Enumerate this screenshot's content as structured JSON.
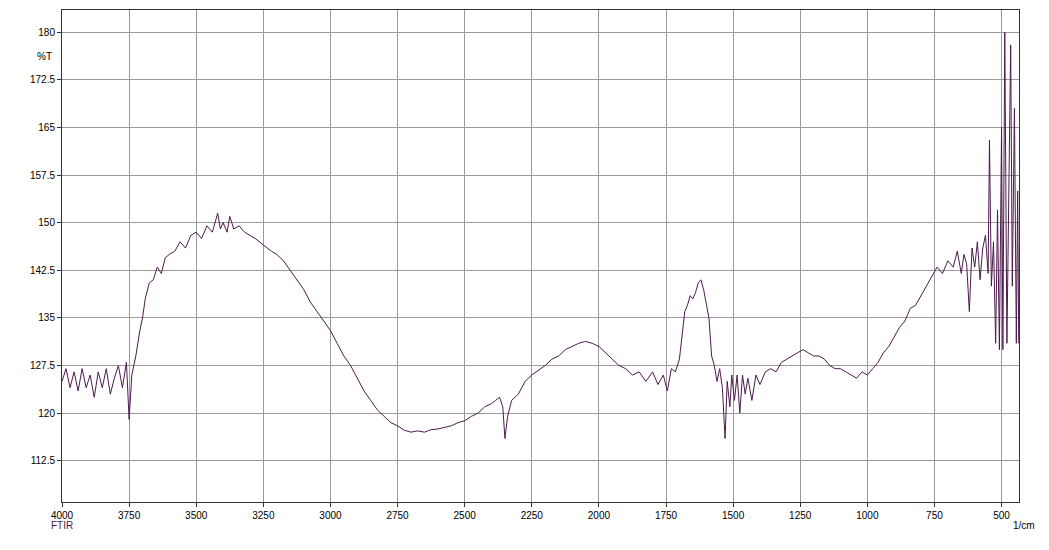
{
  "chart_data": {
    "type": "line",
    "xlabel": "1/cm",
    "ylabel": "%T",
    "annotations": [
      {
        "text": "FTIR",
        "x": 4000
      }
    ],
    "color": "#4d1b4d",
    "grid": true,
    "xlim": [
      4000,
      435
    ],
    "ylim": [
      106,
      183.5
    ],
    "xticks": [
      4000,
      3750,
      3500,
      3250,
      3000,
      2750,
      2500,
      2250,
      2000,
      1750,
      1500,
      1250,
      1000,
      750,
      500
    ],
    "yticks": [
      112.5,
      120,
      127.5,
      135,
      142.5,
      150,
      157.5,
      165,
      172.5,
      180
    ],
    "x": [
      4000,
      3985,
      3970,
      3955,
      3940,
      3925,
      3910,
      3895,
      3880,
      3865,
      3850,
      3835,
      3820,
      3805,
      3790,
      3775,
      3760,
      3750,
      3740,
      3725,
      3710,
      3700,
      3690,
      3675,
      3660,
      3645,
      3630,
      3615,
      3600,
      3580,
      3560,
      3540,
      3520,
      3500,
      3480,
      3460,
      3440,
      3420,
      3410,
      3400,
      3385,
      3375,
      3360,
      3340,
      3320,
      3300,
      3280,
      3250,
      3220,
      3200,
      3175,
      3150,
      3125,
      3100,
      3075,
      3050,
      3025,
      3000,
      2975,
      2950,
      2925,
      2900,
      2875,
      2850,
      2825,
      2800,
      2775,
      2750,
      2725,
      2700,
      2675,
      2650,
      2625,
      2600,
      2575,
      2550,
      2525,
      2500,
      2475,
      2450,
      2425,
      2400,
      2385,
      2370,
      2358,
      2350,
      2340,
      2325,
      2300,
      2275,
      2250,
      2225,
      2200,
      2175,
      2150,
      2125,
      2100,
      2075,
      2050,
      2025,
      2000,
      1975,
      1950,
      1925,
      1900,
      1875,
      1850,
      1825,
      1800,
      1780,
      1760,
      1745,
      1730,
      1715,
      1700,
      1690,
      1680,
      1670,
      1660,
      1650,
      1640,
      1630,
      1620,
      1610,
      1600,
      1590,
      1580,
      1570,
      1560,
      1550,
      1540,
      1530,
      1522,
      1512,
      1505,
      1495,
      1485,
      1475,
      1465,
      1455,
      1445,
      1430,
      1415,
      1400,
      1380,
      1360,
      1340,
      1320,
      1300,
      1280,
      1260,
      1240,
      1220,
      1200,
      1180,
      1160,
      1140,
      1120,
      1100,
      1080,
      1060,
      1040,
      1020,
      1000,
      980,
      960,
      940,
      920,
      900,
      880,
      860,
      840,
      820,
      800,
      780,
      760,
      740,
      720,
      700,
      680,
      665,
      650,
      640,
      630,
      620,
      610,
      600,
      590,
      580,
      570,
      560,
      550,
      545,
      538,
      530,
      522,
      515,
      508,
      500,
      495,
      488,
      480,
      472,
      466,
      460,
      452,
      445,
      440,
      436
    ],
    "values": [
      125,
      127,
      124,
      126.5,
      123.5,
      127,
      124,
      126,
      122.5,
      126.5,
      124,
      127,
      123,
      125.5,
      127.5,
      124,
      128,
      119,
      126,
      129,
      133,
      135,
      138,
      140.5,
      141,
      143,
      142,
      144.5,
      145,
      145.5,
      147,
      146,
      148,
      148.5,
      147.5,
      149.5,
      148.5,
      151.5,
      149,
      150,
      148.5,
      151,
      149,
      149.5,
      148.5,
      148,
      147.5,
      146.5,
      145.5,
      145,
      144,
      142.5,
      141,
      139.5,
      137.5,
      136,
      134.5,
      133,
      131,
      129,
      127.5,
      125.5,
      123.5,
      122,
      120.5,
      119.5,
      118.5,
      118,
      117.3,
      117,
      117.2,
      117,
      117.4,
      117.5,
      117.8,
      118,
      118.5,
      118.8,
      119.5,
      120,
      121,
      121.5,
      122,
      122.5,
      121,
      116,
      119.5,
      122,
      123,
      125,
      126,
      126.8,
      127.5,
      128.5,
      129,
      130,
      130.5,
      131,
      131.3,
      131,
      130.5,
      129.5,
      128.5,
      127.5,
      127,
      126,
      126.5,
      125,
      126.5,
      124.5,
      126,
      123.5,
      127,
      126.5,
      128.5,
      132,
      136,
      137,
      138.5,
      138,
      139,
      140.5,
      141,
      139.5,
      137,
      135,
      129,
      127.5,
      125,
      127,
      124,
      116,
      125,
      121,
      126,
      122,
      126,
      120,
      126,
      123,
      125.5,
      122,
      126,
      124.5,
      126.5,
      127,
      126.5,
      128,
      128.5,
      129,
      129.5,
      130,
      129.5,
      129,
      129,
      128.5,
      127.5,
      127,
      127,
      126.5,
      126,
      125.5,
      126.5,
      126,
      127,
      128,
      129.5,
      130.5,
      132,
      133.5,
      134.5,
      136.5,
      137,
      138.5,
      140,
      141.5,
      143,
      142,
      144,
      143,
      145.5,
      142,
      145,
      143.5,
      136,
      146,
      143,
      147,
      141,
      146,
      148,
      142,
      163,
      140,
      147,
      131,
      152,
      130,
      165,
      130,
      180,
      131,
      160,
      178,
      140,
      168,
      131,
      155,
      131
    ]
  }
}
